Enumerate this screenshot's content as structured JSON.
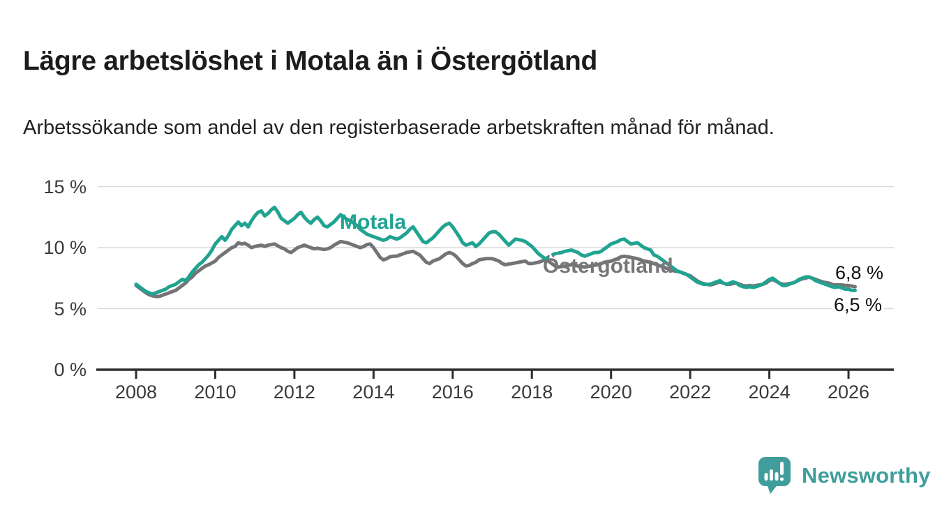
{
  "header": {
    "title": "Lägre arbetslöshet i Motala än i Östergötland",
    "subtitle": "Arbetssökande som andel av den registerbaserade arbetskraften månad för månad."
  },
  "chart_data": {
    "type": "line",
    "title": "Lägre arbetslöshet i Motala än i Östergötland",
    "subtitle": "Arbetssökande som andel av den registerbaserade arbetskraften månad för månad.",
    "unit": "%",
    "x_monthly_from": "2008-01",
    "x_monthly_to": "2026-03",
    "x_tick_labels": [
      "2008",
      "2010",
      "2012",
      "2014",
      "2016",
      "2018",
      "2020",
      "2022",
      "2024",
      "2026"
    ],
    "y_tick_values": [
      0,
      5,
      10,
      15
    ],
    "y_tick_labels": [
      "0 %",
      "5 %",
      "10 %",
      "15 %"
    ],
    "ylim": [
      0,
      17
    ],
    "grid": "horizontal",
    "grid_color": "#d9d9d9",
    "axis_color": "#2e2e2e",
    "legend_position": "inline-labels-on-lines",
    "series": [
      {
        "name": "Motala",
        "color": "#21a392",
        "end_label": "6,5 %",
        "end_value": 6.5,
        "dash_segment": [
          124,
          128
        ],
        "values": [
          7.0,
          6.8,
          6.6,
          6.4,
          6.3,
          6.2,
          6.3,
          6.4,
          6.5,
          6.6,
          6.8,
          6.9,
          7.0,
          7.2,
          7.4,
          7.3,
          7.6,
          8.0,
          8.3,
          8.6,
          8.8,
          9.1,
          9.4,
          9.8,
          10.3,
          10.6,
          10.9,
          10.6,
          11.0,
          11.5,
          11.8,
          12.1,
          11.8,
          12.0,
          11.7,
          12.2,
          12.6,
          12.9,
          13.0,
          12.6,
          12.8,
          13.1,
          13.3,
          12.9,
          12.4,
          12.2,
          12.0,
          12.2,
          12.4,
          12.7,
          12.9,
          12.5,
          12.2,
          12.0,
          12.3,
          12.5,
          12.2,
          11.8,
          11.7,
          11.9,
          12.1,
          12.4,
          12.7,
          12.5,
          12.3,
          12.2,
          12.0,
          11.8,
          11.5,
          11.3,
          11.1,
          11.0,
          10.9,
          10.8,
          10.7,
          10.6,
          10.7,
          10.9,
          10.8,
          10.7,
          10.8,
          11.0,
          11.2,
          11.5,
          11.7,
          11.3,
          10.9,
          10.5,
          10.4,
          10.6,
          10.8,
          11.1,
          11.4,
          11.7,
          11.9,
          12.0,
          11.7,
          11.3,
          10.9,
          10.4,
          10.2,
          10.3,
          10.4,
          10.1,
          10.3,
          10.6,
          10.9,
          11.2,
          11.3,
          11.3,
          11.1,
          10.8,
          10.5,
          10.2,
          10.45,
          10.7,
          10.65,
          10.6,
          10.5,
          10.3,
          10.1,
          9.8,
          9.5,
          9.3,
          9.1,
          9.2,
          9.4,
          9.5,
          9.55,
          9.6,
          9.7,
          9.75,
          9.8,
          9.7,
          9.6,
          9.4,
          9.3,
          9.4,
          9.5,
          9.6,
          9.6,
          9.7,
          9.9,
          10.1,
          10.3,
          10.4,
          10.5,
          10.65,
          10.7,
          10.5,
          10.3,
          10.35,
          10.4,
          10.2,
          10.0,
          9.9,
          9.8,
          9.4,
          9.3,
          9.1,
          8.9,
          8.7,
          8.5,
          8.3,
          8.1,
          8.0,
          7.9,
          7.8,
          7.6,
          7.4,
          7.2,
          7.1,
          7.0,
          7.0,
          7.0,
          7.1,
          7.2,
          7.3,
          7.1,
          7.0,
          7.1,
          7.2,
          7.1,
          6.9,
          6.8,
          6.75,
          6.8,
          6.75,
          6.8,
          6.9,
          7.0,
          7.2,
          7.4,
          7.5,
          7.3,
          7.1,
          6.9,
          6.9,
          7.0,
          7.1,
          7.2,
          7.4,
          7.5,
          7.6,
          7.6,
          7.5,
          7.3,
          7.2,
          7.1,
          7.0,
          6.9,
          6.8,
          6.75,
          6.8,
          6.7,
          6.6,
          6.6,
          6.5,
          6.5
        ]
      },
      {
        "name": "Östergötland",
        "color": "#747477",
        "end_label": "6,8 %",
        "end_value": 6.8,
        "values": [
          6.9,
          6.7,
          6.5,
          6.3,
          6.15,
          6.05,
          6.0,
          6.0,
          6.1,
          6.2,
          6.3,
          6.4,
          6.5,
          6.7,
          6.9,
          7.1,
          7.4,
          7.6,
          7.9,
          8.1,
          8.3,
          8.5,
          8.6,
          8.75,
          8.9,
          9.2,
          9.4,
          9.6,
          9.8,
          10.0,
          10.1,
          10.4,
          10.3,
          10.35,
          10.2,
          10.0,
          10.1,
          10.15,
          10.2,
          10.1,
          10.2,
          10.25,
          10.3,
          10.15,
          10.0,
          9.9,
          9.7,
          9.6,
          9.8,
          10.0,
          10.1,
          10.2,
          10.1,
          10.0,
          9.9,
          9.95,
          9.9,
          9.85,
          9.9,
          10.0,
          10.2,
          10.35,
          10.5,
          10.45,
          10.4,
          10.3,
          10.2,
          10.1,
          10.0,
          10.1,
          10.25,
          10.3,
          10.0,
          9.6,
          9.2,
          9.0,
          9.1,
          9.25,
          9.3,
          9.3,
          9.4,
          9.5,
          9.6,
          9.65,
          9.7,
          9.55,
          9.4,
          9.1,
          8.8,
          8.7,
          8.9,
          9.0,
          9.1,
          9.3,
          9.5,
          9.6,
          9.5,
          9.3,
          9.0,
          8.7,
          8.5,
          8.55,
          8.7,
          8.8,
          9.0,
          9.05,
          9.1,
          9.1,
          9.1,
          9.0,
          8.9,
          8.7,
          8.6,
          8.65,
          8.7,
          8.75,
          8.8,
          8.85,
          8.9,
          8.7,
          8.7,
          8.75,
          8.8,
          8.9,
          9.0,
          8.9,
          8.7,
          8.5,
          8.4,
          8.45,
          8.5,
          8.55,
          8.6,
          8.55,
          8.5,
          8.45,
          8.4,
          8.45,
          8.5,
          8.55,
          8.6,
          8.7,
          8.8,
          8.85,
          8.9,
          9.0,
          9.1,
          9.25,
          9.3,
          9.25,
          9.2,
          9.15,
          9.1,
          9.0,
          8.9,
          8.85,
          8.8,
          8.7,
          8.6,
          8.5,
          8.4,
          8.3,
          8.2,
          8.1,
          8.05,
          8.0,
          7.9,
          7.8,
          7.7,
          7.5,
          7.3,
          7.15,
          7.05,
          7.0,
          6.95,
          7.0,
          7.1,
          7.2,
          7.1,
          7.0,
          7.0,
          7.05,
          7.1,
          7.0,
          6.9,
          6.85,
          6.9,
          6.85,
          6.9,
          6.95,
          7.0,
          7.1,
          7.3,
          7.4,
          7.25,
          7.1,
          7.0,
          7.0,
          7.05,
          7.1,
          7.2,
          7.35,
          7.45,
          7.5,
          7.6,
          7.5,
          7.4,
          7.3,
          7.2,
          7.15,
          7.1,
          7.0,
          6.95,
          7.0,
          6.95,
          6.9,
          6.9,
          6.85,
          6.8
        ]
      }
    ]
  },
  "branding": {
    "name": "Newsworthy",
    "brand_color": "#3f9e9b",
    "logo_icon": "speech-bubble-bar-chart"
  }
}
